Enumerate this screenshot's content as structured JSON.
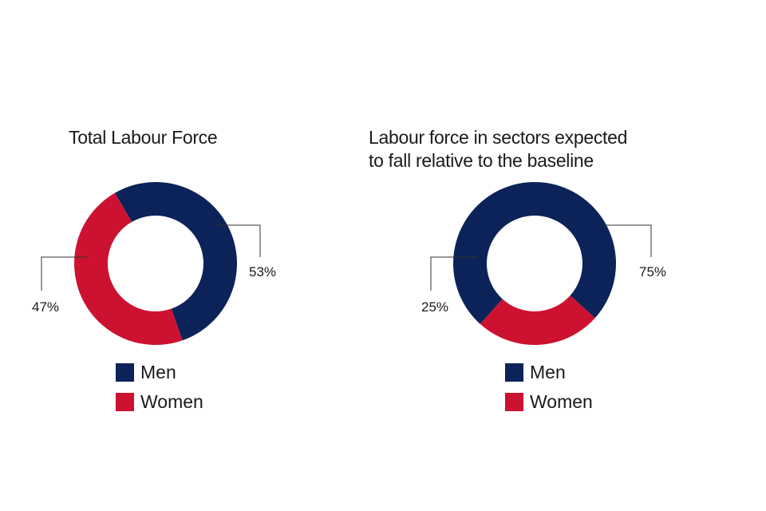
{
  "colors": {
    "men": "#0b2358",
    "women": "#cc1230",
    "leader": "#333333"
  },
  "chart_data": [
    {
      "type": "pie",
      "variant": "donut",
      "title": "Total Labour Force",
      "series": [
        {
          "name": "Men",
          "value": 53,
          "label": "53%"
        },
        {
          "name": "Women",
          "value": 47,
          "label": "47%"
        }
      ],
      "legend": {
        "placement": "bottom",
        "entries": [
          "Men",
          "Women"
        ]
      }
    },
    {
      "type": "pie",
      "variant": "donut",
      "title": "Labour force in sectors expected to fall relative to the baseline",
      "title_lines": [
        "Labour force in sectors expected",
        "to fall relative to the baseline"
      ],
      "series": [
        {
          "name": "Men",
          "value": 75,
          "label": "75%"
        },
        {
          "name": "Women",
          "value": 25,
          "label": "25%"
        }
      ],
      "legend": {
        "placement": "bottom",
        "entries": [
          "Men",
          "Women"
        ]
      }
    }
  ]
}
